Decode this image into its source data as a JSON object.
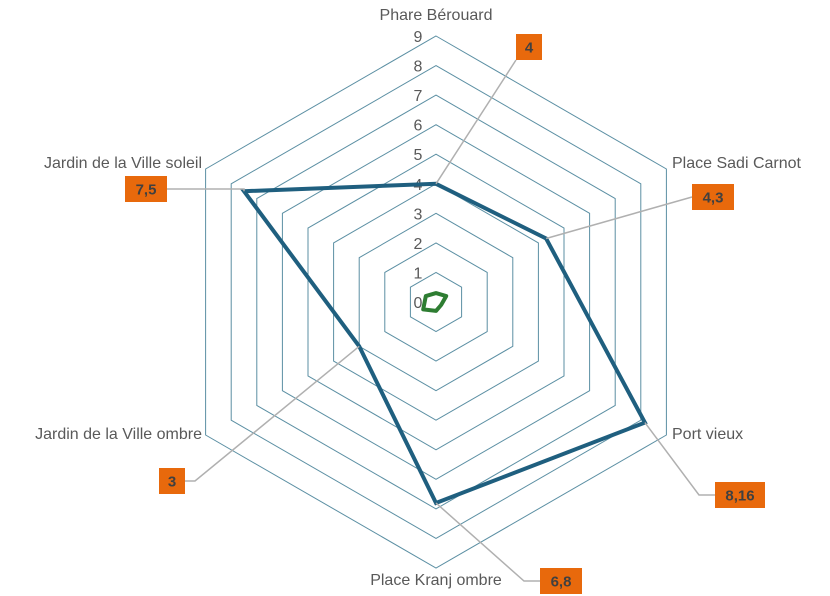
{
  "chart_data": {
    "type": "radar",
    "categories": [
      "Phare Bérouard",
      "Place Sadi Carnot",
      "Port vieux",
      "Place Kranj ombre",
      "Jardin de la Ville ombre",
      "Jardin de la Ville soleil"
    ],
    "rlim": [
      0,
      9
    ],
    "ticks": [
      "0",
      "1",
      "2",
      "3",
      "4",
      "5",
      "6",
      "7",
      "8",
      "9"
    ],
    "grid": true,
    "series": [
      {
        "values": [
          4,
          4.3,
          8.16,
          6.8,
          3,
          7.5
        ],
        "data_labels": [
          "4",
          "4,3",
          "8,16",
          "6,8",
          "3",
          "7,5"
        ],
        "color": "#1f5f7f"
      },
      {
        "values": [
          0.3,
          0.4,
          0.2,
          0.3,
          0.5,
          0.4
        ],
        "color": "#2e7d32"
      }
    ],
    "colors": {
      "grid": "#5b8fa3",
      "data_label_fill": "#e8690c",
      "leader_line": "#b0b0b0"
    }
  }
}
